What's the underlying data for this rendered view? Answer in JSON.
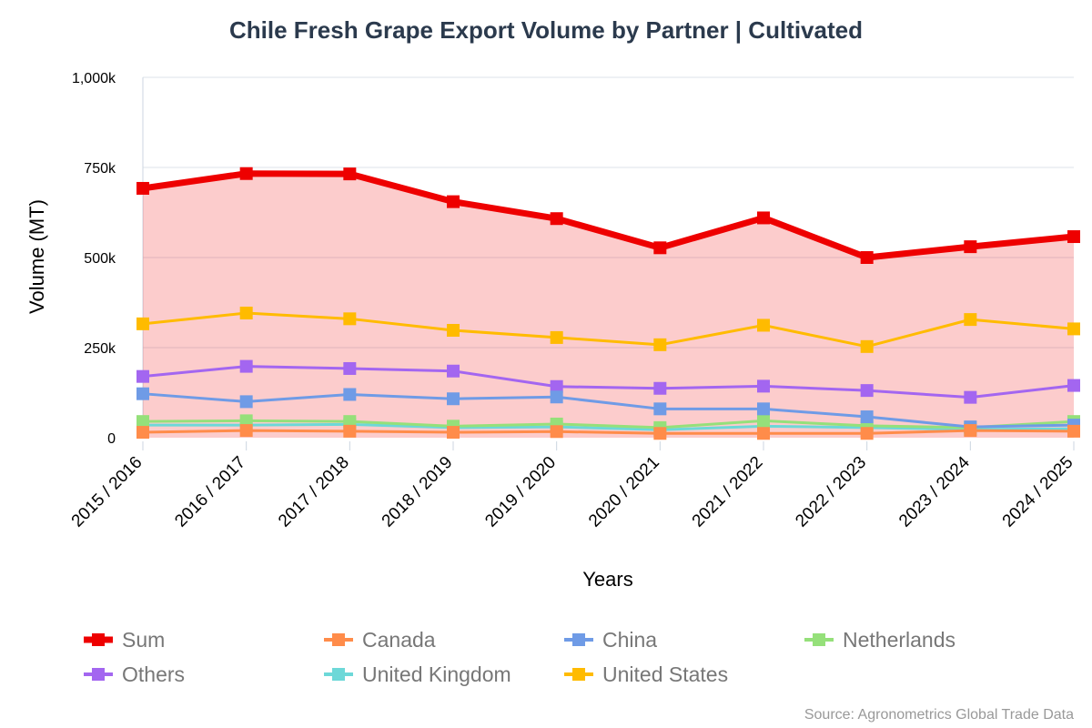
{
  "chart_data": {
    "type": "line",
    "title": "Chile Fresh Grape Export Volume by Partner | Cultivated",
    "xlabel": "Years",
    "ylabel": "Volume (MT)",
    "source": "Source: Agronometrics Global Trade Data",
    "categories": [
      "2015 / 2016",
      "2016 / 2017",
      "2017 / 2018",
      "2018 / 2019",
      "2019 / 2020",
      "2020 / 2021",
      "2021 / 2022",
      "2022 / 2023",
      "2023 / 2024",
      "2024 / 2025"
    ],
    "ylim": [
      0,
      1000000
    ],
    "yticks": [
      0,
      250000,
      500000,
      750000,
      1000000
    ],
    "ytick_labels": [
      "0",
      "250k",
      "500k",
      "750k",
      "1,000k"
    ],
    "grid": true,
    "legend_position": "bottom",
    "series": [
      {
        "name": "Sum",
        "color": "#ee0000",
        "area": true,
        "values": [
          692000,
          733000,
          732000,
          655000,
          608000,
          527000,
          610000,
          500000,
          530000,
          558000
        ]
      },
      {
        "name": "Canada",
        "color": "#ff8c4a",
        "values": [
          15000,
          20000,
          18000,
          15000,
          17000,
          12000,
          12000,
          12000,
          20000,
          18000
        ]
      },
      {
        "name": "China",
        "color": "#6f9be6",
        "values": [
          122000,
          100000,
          120000,
          108000,
          113000,
          80000,
          80000,
          58000,
          30000,
          35000
        ]
      },
      {
        "name": "Netherlands",
        "color": "#95e07a",
        "values": [
          45000,
          47000,
          45000,
          32000,
          38000,
          28000,
          47000,
          33000,
          28000,
          45000
        ]
      },
      {
        "name": "Others",
        "color": "#a366f0",
        "values": [
          170000,
          198000,
          192000,
          185000,
          142000,
          137000,
          143000,
          131000,
          112000,
          145000
        ]
      },
      {
        "name": "United Kingdom",
        "color": "#6dd8d8",
        "values": [
          35000,
          35000,
          37000,
          28000,
          30000,
          22000,
          32000,
          28000,
          23000,
          25000
        ]
      },
      {
        "name": "United States",
        "color": "#ffbb00",
        "values": [
          316000,
          346000,
          330000,
          298000,
          278000,
          258000,
          312000,
          253000,
          328000,
          302000
        ]
      }
    ]
  }
}
